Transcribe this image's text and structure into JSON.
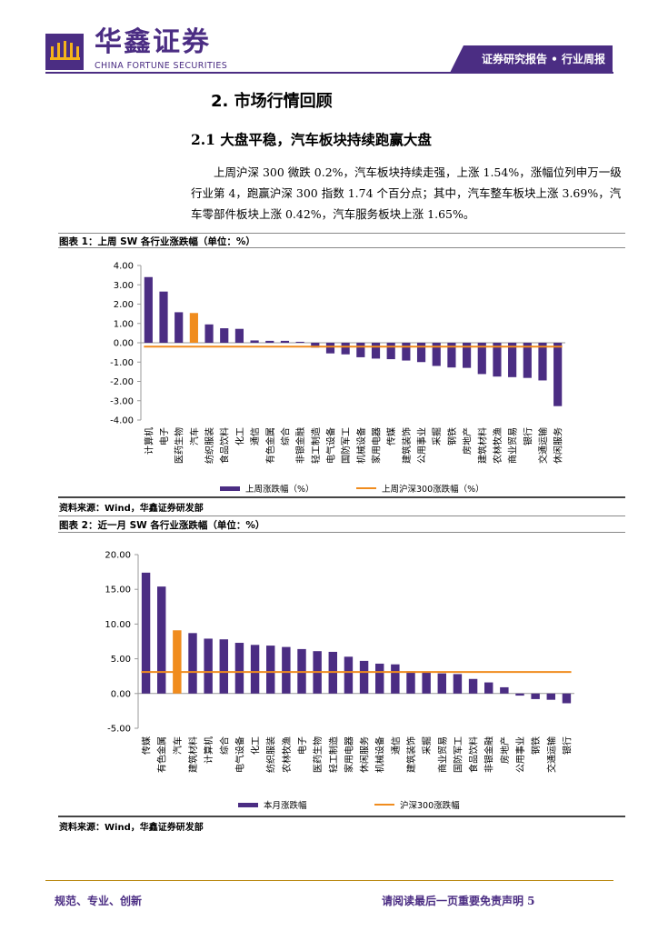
{
  "header": {
    "brand_cn": "华鑫证券",
    "brand_en": "CHINA FORTUNE SECURITIES",
    "report_tag": "证券研究报告 • 行业周报"
  },
  "section": {
    "title": "2.    市场行情回顾",
    "subtitle": "2.1 大盘平稳，汽车板块持续跑赢大盘",
    "paragraph": "上周沪深 300 微跌 0.2%，汽车板块持续走强，上涨 1.54%，涨幅位列申万一级行业第 4，跑赢沪深 300 指数 1.74 个百分点；其中，汽车整车板块上涨 3.69%，汽车零部件板块上涨 0.42%，汽车服务板块上涨 1.65%。"
  },
  "figure1": {
    "title": "图表 1：上周 SW 各行业涨跌幅（单位：%）",
    "source": "资料来源：Wind，华鑫证券研发部"
  },
  "figure2": {
    "title": "图表 2：近一月 SW 各行业涨跌幅（单位：%）",
    "source": "资料来源：Wind，华鑫证券研发部"
  },
  "footer": {
    "left": "规范、专业、创新",
    "right": "请阅读最后一页重要免责声明 5"
  },
  "colors": {
    "bar": "#4b2d83",
    "highlight": "#f08c1e",
    "line": "#f08c1e"
  },
  "chart_data": [
    {
      "type": "bar",
      "title": "上周 SW 各行业涨跌幅（单位：%）",
      "categories": [
        "计算机",
        "电子",
        "医药生物",
        "汽车",
        "纺织服装",
        "食品饮料",
        "化工",
        "通信",
        "有色金属",
        "综合",
        "非银金融",
        "轻工制造",
        "电气设备",
        "国防军工",
        "机械设备",
        "家用电器",
        "传媒",
        "建筑装饰",
        "公用事业",
        "采掘",
        "钢铁",
        "房地产",
        "建筑材料",
        "农林牧渔",
        "商业贸易",
        "银行",
        "交通运输",
        "休闲服务"
      ],
      "values": [
        3.4,
        2.65,
        1.58,
        1.54,
        0.95,
        0.75,
        0.72,
        0.12,
        0.1,
        0.1,
        0.05,
        -0.25,
        -0.55,
        -0.6,
        -0.75,
        -0.82,
        -0.85,
        -0.92,
        -1.0,
        -1.2,
        -1.28,
        -1.3,
        -1.62,
        -1.75,
        -1.78,
        -1.82,
        -1.95,
        -3.28
      ],
      "highlight": "汽车",
      "reference_line": {
        "name": "上周沪深300涨跌幅（%）",
        "value": -0.2
      },
      "series_name": "上周涨跌幅（%）",
      "ylim": [
        -4,
        4
      ],
      "yticks": [
        "4.00",
        "3.00",
        "2.00",
        "1.00",
        "0.00",
        "-1.00",
        "-2.00",
        "-3.00",
        "-4.00"
      ]
    },
    {
      "type": "bar",
      "title": "近一月 SW 各行业涨跌幅（单位：%）",
      "categories": [
        "传媒",
        "有色金属",
        "汽车",
        "建筑材料",
        "计算机",
        "综合",
        "电气设备",
        "化工",
        "纺织服装",
        "农林牧渔",
        "电子",
        "医药生物",
        "轻工制造",
        "家用电器",
        "休闲服务",
        "机械设备",
        "通信",
        "建筑装饰",
        "采掘",
        "商业贸易",
        "国防军工",
        "食品饮料",
        "非银金融",
        "房地产",
        "公用事业",
        "钢铁",
        "交通运输",
        "银行"
      ],
      "values": [
        17.4,
        15.4,
        9.1,
        8.7,
        7.9,
        7.8,
        7.3,
        7.0,
        6.9,
        6.7,
        6.4,
        6.1,
        6.0,
        5.3,
        4.7,
        4.3,
        4.2,
        3.2,
        3.0,
        2.9,
        2.8,
        2.1,
        1.6,
        0.9,
        -0.3,
        -0.8,
        -0.9,
        -1.4
      ],
      "highlight": "汽车",
      "reference_line": {
        "name": "沪深300涨跌幅",
        "value": 3.1
      },
      "series_name": "本月涨跌幅",
      "ylim": [
        -5,
        20
      ],
      "yticks": [
        "20.00",
        "15.00",
        "10.00",
        "5.00",
        "0.00",
        "-5.00"
      ]
    }
  ]
}
